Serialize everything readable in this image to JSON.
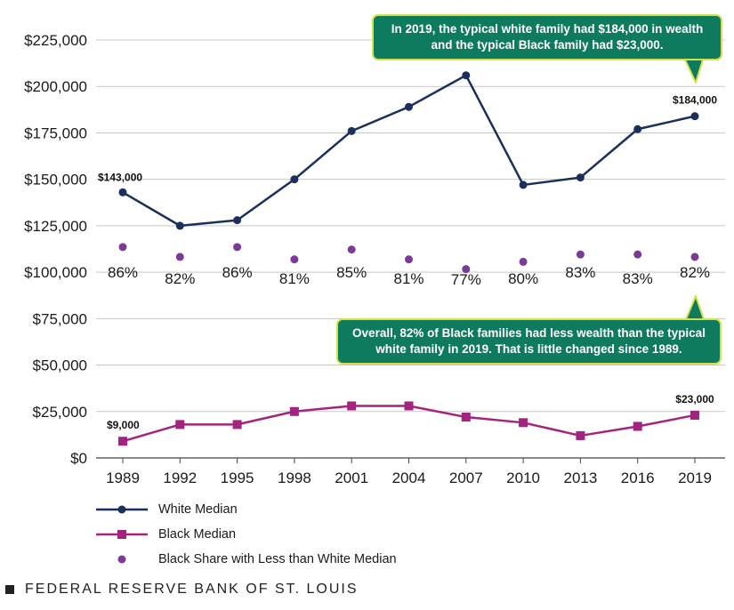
{
  "chart_data": {
    "type": "line",
    "categories": [
      "1989",
      "1992",
      "1995",
      "1998",
      "2001",
      "2004",
      "2007",
      "2010",
      "2013",
      "2016",
      "2019"
    ],
    "ylim": [
      0,
      225000
    ],
    "y_ticks": [
      "$0",
      "$25,000",
      "$50,000",
      "$75,000",
      "$100,000",
      "$125,000",
      "$150,000",
      "$175,000",
      "$200,000",
      "$225,000"
    ],
    "series": [
      {
        "name": "White Median",
        "color": "#1c2f5c",
        "marker": "circle",
        "values": [
          143000,
          125000,
          128000,
          150000,
          176000,
          189000,
          206000,
          147000,
          151000,
          177000,
          184000
        ]
      },
      {
        "name": "Black Median",
        "color": "#a3247f",
        "marker": "square",
        "values": [
          9000,
          18000,
          18000,
          25000,
          28000,
          28000,
          22000,
          19000,
          12000,
          17000,
          23000
        ]
      },
      {
        "name": "Black Share with Less than White Median",
        "color": "#7a3b96",
        "marker": "dot",
        "values": [
          86,
          82,
          86,
          81,
          85,
          81,
          77,
          80,
          83,
          83,
          82
        ],
        "labels": [
          "86%",
          "82%",
          "86%",
          "81%",
          "85%",
          "81%",
          "77%",
          "80%",
          "83%",
          "83%",
          "82%"
        ]
      }
    ],
    "data_labels": {
      "white_first": "$143,000",
      "white_last": "$184,000",
      "black_first": "$9,000",
      "black_last": "$23,000"
    },
    "annotations": {
      "top": "In 2019, the typical white family had $184,000 in wealth and the typical Black family had $23,000.",
      "bottom": "Overall, 82% of Black families had less wealth than the typical white family in 2019. That is little changed since 1989."
    },
    "legend": [
      "White Median",
      "Black Median",
      "Black Share with Less than White Median"
    ],
    "grid": true,
    "legend_position": "bottom-left"
  },
  "colors": {
    "callout_bg": "#0e7a5e",
    "callout_border": "#d4e04a",
    "grid": "#c8c8c8"
  },
  "footer": {
    "source": "FEDERAL RESERVE BANK OF ST. LOUIS"
  }
}
